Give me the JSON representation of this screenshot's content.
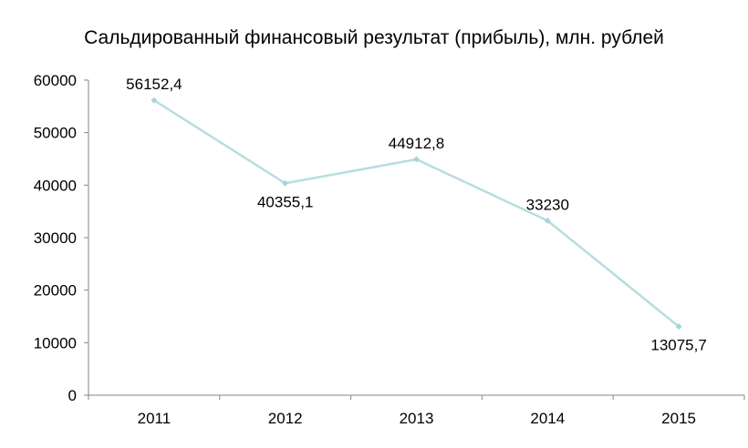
{
  "chart_data": {
    "type": "line",
    "title": "Сальдированный финансовый результат (прибыль), млн. рублей",
    "categories": [
      "2011",
      "2012",
      "2013",
      "2014",
      "2015"
    ],
    "series": [
      {
        "values": [
          56152.4,
          40355.1,
          44912.8,
          33230,
          13075.7
        ],
        "labels": [
          "56152,4",
          "40355,1",
          "44912,8",
          "33230",
          "13075,7"
        ]
      }
    ],
    "ylim": [
      0,
      60000
    ],
    "yticks": [
      0,
      10000,
      20000,
      30000,
      40000,
      50000,
      60000
    ],
    "ytick_labels": [
      "0",
      "10000",
      "20000",
      "30000",
      "40000",
      "50000",
      "60000"
    ],
    "grid": false,
    "legend": "none",
    "colors": {
      "line": "#b7dde0",
      "marker": "#a9d4d8",
      "axis": "#868686"
    }
  }
}
